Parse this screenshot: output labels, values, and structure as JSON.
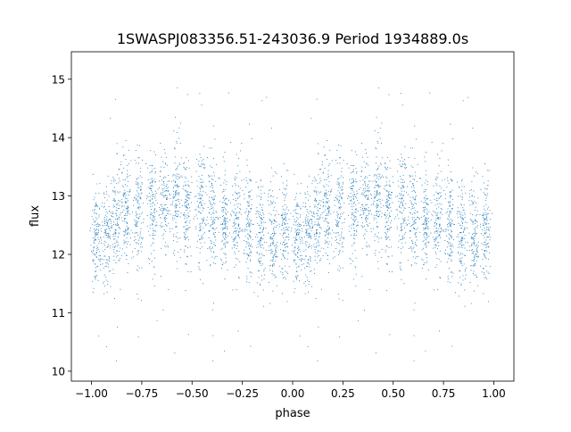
{
  "chart_data": {
    "type": "scatter",
    "title": "1SWASPJ083356.51-243036.9 Period 1934889.0s",
    "xlabel": "phase",
    "ylabel": "flux",
    "xlim": [
      -1.1,
      1.1
    ],
    "ylim": [
      9.83,
      15.47
    ],
    "xticks": [
      -1.0,
      -0.75,
      -0.5,
      -0.25,
      0.0,
      0.25,
      0.5,
      0.75,
      1.0
    ],
    "xtick_labels": [
      "−1.00",
      "−0.75",
      "−0.50",
      "−0.25",
      "0.00",
      "0.25",
      "0.50",
      "0.75",
      "1.00"
    ],
    "yticks": [
      10,
      11,
      12,
      13,
      14,
      15
    ],
    "ytick_labels": [
      "10",
      "11",
      "12",
      "13",
      "14",
      "15"
    ],
    "grid": false,
    "marker_color": "#1f77b4",
    "note": "Phase-folded light curve repeated over phase -1..0 and 0..1; points clustered in vertical bands",
    "bands": [
      {
        "phase": 0.02,
        "mean_flux": 12.4,
        "spread": 0.45
      },
      {
        "phase": 0.07,
        "mean_flux": 12.3,
        "spread": 0.45
      },
      {
        "phase": 0.12,
        "mean_flux": 12.6,
        "spread": 0.45
      },
      {
        "phase": 0.17,
        "mean_flux": 12.7,
        "spread": 0.45
      },
      {
        "phase": 0.23,
        "mean_flux": 12.7,
        "spread": 0.5
      },
      {
        "phase": 0.3,
        "mean_flux": 12.8,
        "spread": 0.45
      },
      {
        "phase": 0.36,
        "mean_flux": 12.9,
        "spread": 0.45
      },
      {
        "phase": 0.42,
        "mean_flux": 13.0,
        "spread": 0.5
      },
      {
        "phase": 0.47,
        "mean_flux": 12.8,
        "spread": 0.45
      },
      {
        "phase": 0.54,
        "mean_flux": 12.8,
        "spread": 0.5
      },
      {
        "phase": 0.6,
        "mean_flux": 12.7,
        "spread": 0.45
      },
      {
        "phase": 0.66,
        "mean_flux": 12.6,
        "spread": 0.45
      },
      {
        "phase": 0.72,
        "mean_flux": 12.6,
        "spread": 0.45
      },
      {
        "phase": 0.78,
        "mean_flux": 12.5,
        "spread": 0.45
      },
      {
        "phase": 0.84,
        "mean_flux": 12.4,
        "spread": 0.45
      },
      {
        "phase": 0.9,
        "mean_flux": 12.3,
        "spread": 0.45
      },
      {
        "phase": 0.96,
        "mean_flux": 12.4,
        "spread": 0.45
      }
    ],
    "points_per_band": 130
  }
}
